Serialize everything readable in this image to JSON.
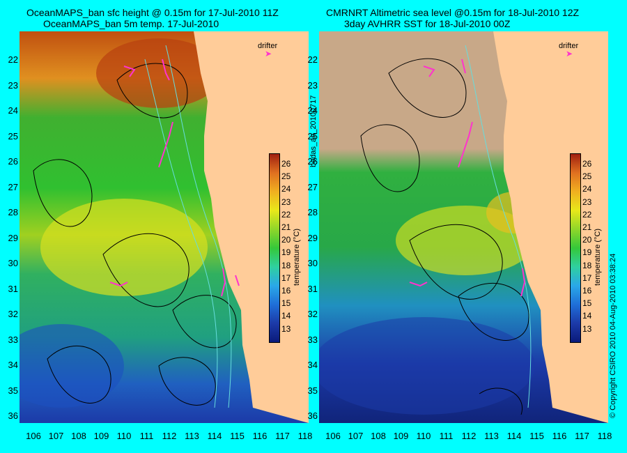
{
  "left_panel": {
    "title_line1": "OceanMAPS_ban sfc height @ 0.15m for 17-Jul-2010 11Z",
    "title_line2": "OceanMAPS_ban 5m temp. 17-Jul-2010",
    "legend": "drifter"
  },
  "right_panel": {
    "title_line1": "CMRNRT Altimetric sea level  @0.15m  for 18-Jul-2010 12Z",
    "title_line2": "3day AVHRR SST for 18-Jul-2010 00Z",
    "legend": "drifter"
  },
  "side_label": "bodas_an_20100717",
  "copyright": "© Copyright CSIRO 2010    04-Aug-2010 03:38:24",
  "colorbar": {
    "label": "temperature (°C)",
    "ticks": [
      "26",
      "25",
      "24",
      "23",
      "22",
      "21",
      "20",
      "19",
      "18",
      "17",
      "16",
      "15",
      "14",
      "13"
    ]
  },
  "axes": {
    "lat_labels": [
      "22",
      "23",
      "24",
      "25",
      "26",
      "27",
      "28",
      "29",
      "30",
      "31",
      "32",
      "33",
      "34",
      "35",
      "36"
    ],
    "lon_labels": [
      "106",
      "107",
      "108",
      "109",
      "110",
      "111",
      "112",
      "113",
      "114",
      "115",
      "116",
      "117",
      "118"
    ]
  },
  "colors": {
    "background": "#00ffff",
    "land": "#ffcc99",
    "cloud": "#c8a888",
    "drifter": "#ff33cc"
  }
}
